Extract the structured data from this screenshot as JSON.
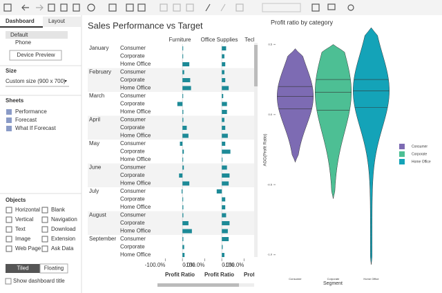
{
  "sidebar": {
    "tabs": [
      "Dashboard",
      "Layout"
    ],
    "devices": [
      "Default",
      "Phone"
    ],
    "device_preview": "Device Preview",
    "size_heading": "Size",
    "size_value": "Custom size (900 x 700)",
    "sheets_heading": "Sheets",
    "sheets": [
      "Performance",
      "Forecast",
      "What If Forecast"
    ],
    "objects_heading": "Objects",
    "objects": [
      "Horizontal",
      "Blank",
      "Vertical",
      "Navigation",
      "Text",
      "Download",
      "Image",
      "Extension",
      "Web Page",
      "Ask Data"
    ],
    "layout_modes": [
      "Tiled",
      "Floating"
    ],
    "show_title": "Show dashboard title"
  },
  "chart_data": [
    {
      "type": "bar",
      "title": "Sales Performance vs Target",
      "months": [
        "January",
        "February",
        "March",
        "April",
        "May",
        "June",
        "July",
        "August",
        "September"
      ],
      "segments": [
        "Consumer",
        "Corporate",
        "Home Office"
      ],
      "color": "#1d8a97",
      "panels": [
        {
          "name": "Furniture",
          "values": [
            [
              1,
              1,
              40
            ],
            [
              10,
              45,
              50
            ],
            [
              2,
              -30,
              5
            ],
            [
              5,
              25,
              35
            ],
            [
              -15,
              8,
              0
            ],
            [
              8,
              -20,
              40
            ],
            [
              -5,
              3,
              5
            ],
            [
              5,
              35,
              55
            ],
            [
              5,
              10,
              12
            ]
          ]
        },
        {
          "name": "Office Supplies",
          "values": [
            [
              25,
              15,
              20
            ],
            [
              15,
              20,
              40
            ],
            [
              8,
              30,
              30
            ],
            [
              15,
              20,
              35
            ],
            [
              20,
              50,
              3
            ],
            [
              30,
              45,
              40
            ],
            [
              -30,
              20,
              20
            ],
            [
              25,
              45,
              35
            ],
            [
              40,
              5,
              15
            ]
          ]
        },
        {
          "name": "Technology",
          "values": []
        }
      ],
      "xlim": [
        -130,
        100
      ],
      "xticks": [
        {
          "value": -100,
          "label": "-100.0%"
        },
        {
          "value": 0,
          "label": "0.0%"
        }
      ],
      "x_label": "Profit Ratio"
    },
    {
      "type": "violin",
      "title": "Profit ratio by category",
      "y_label": "AGG(Profit Ratio)",
      "x_label": "Segment",
      "legend": "right",
      "categories": [
        "Consumer",
        "Corporate",
        "Home Office"
      ],
      "series": [
        {
          "name": "Consumer",
          "color": "#7d6bb3",
          "min": -0.34,
          "q1": 0.04,
          "median": 0.13,
          "q3": 0.2,
          "max": 0.47
        },
        {
          "name": "Corporate",
          "color": "#4dbf94",
          "min": -0.6,
          "q1": 0.03,
          "median": 0.16,
          "q3": 0.25,
          "max": 0.5
        },
        {
          "name": "Home Office",
          "color": "#14a3b8",
          "min": -1.07,
          "q1": 0.05,
          "median": 0.17,
          "q3": 0.25,
          "max": 0.62
        }
      ],
      "ylim": [
        -1.13,
        0.62
      ],
      "yticks": [
        0.5,
        {
          "value": 0,
          "label": "0.0"
        },
        -0.5,
        {
          "value": -1,
          "label": "-1.0"
        }
      ]
    }
  ]
}
